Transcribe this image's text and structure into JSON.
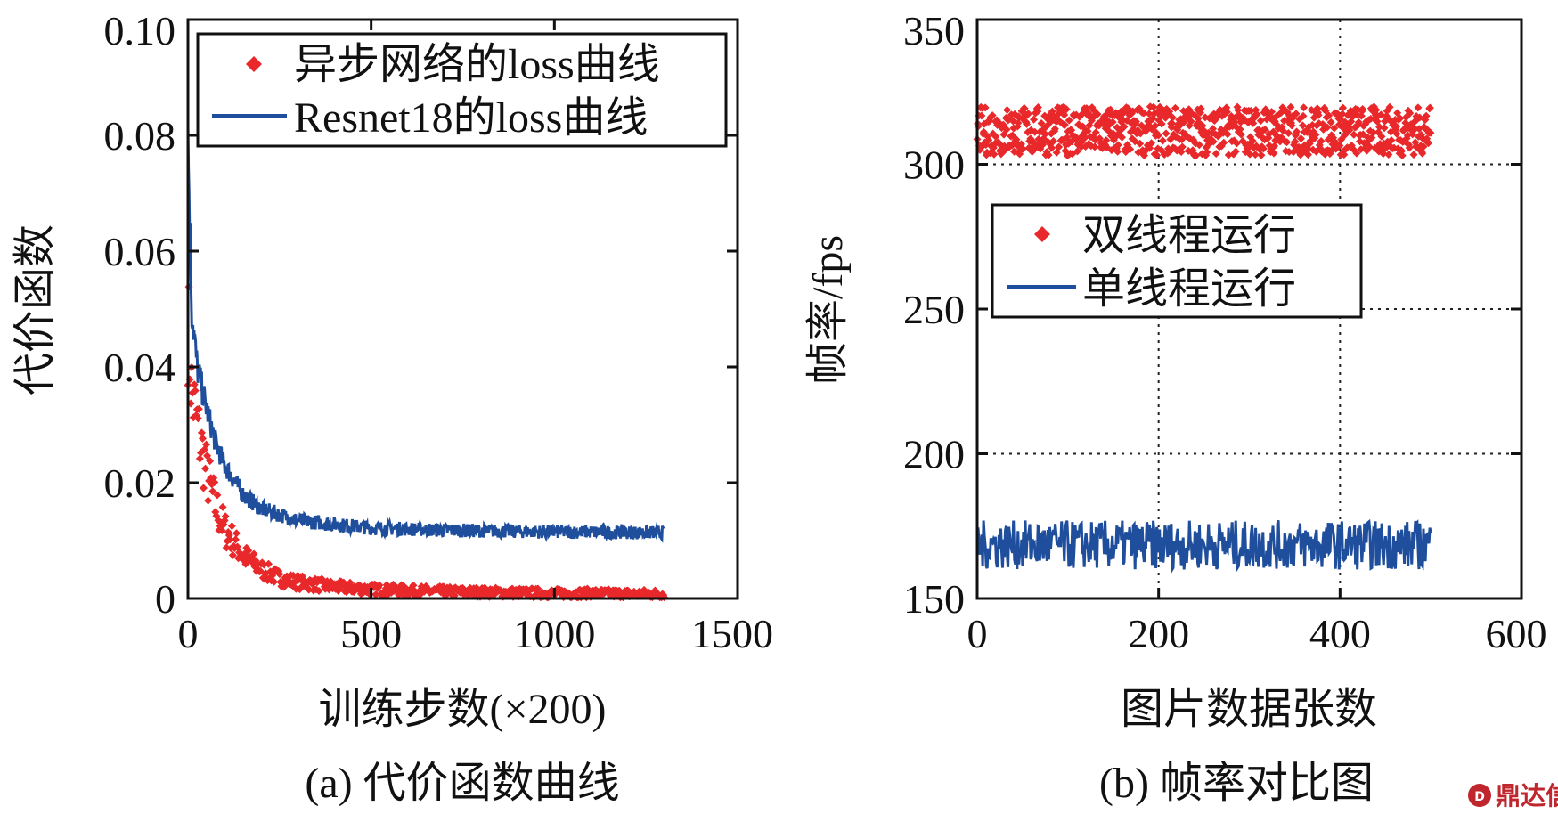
{
  "chart_data": [
    {
      "type": "scatter",
      "subtitle": "(a) 代价函数曲线",
      "xlabel": "训练步数(×200)",
      "ylabel": "代价函数",
      "xlim": [
        0,
        1500
      ],
      "ylim": [
        0,
        0.1
      ],
      "xticks": [
        "0",
        "500",
        "1000",
        "1500"
      ],
      "yticks": [
        "0",
        "0.02",
        "0.04",
        "0.06",
        "0.08",
        "0.10"
      ],
      "grid": false,
      "legend_position": "top-right",
      "series": [
        {
          "name": "异步网络的loss曲线",
          "style": "markers",
          "color": "#e8282a",
          "x": [
            0,
            10,
            25,
            50,
            75,
            100,
            150,
            200,
            250,
            300,
            400,
            500,
            600,
            700,
            800,
            900,
            1000,
            1100,
            1200,
            1300
          ],
          "y": [
            0.048,
            0.036,
            0.03,
            0.022,
            0.016,
            0.012,
            0.0075,
            0.005,
            0.0035,
            0.0028,
            0.002,
            0.0016,
            0.0014,
            0.0012,
            0.0011,
            0.001,
            0.0009,
            0.0009,
            0.0008,
            0.0008
          ]
        },
        {
          "name": "Resnet18的loss曲线",
          "style": "line",
          "color": "#1f4e9c",
          "x": [
            0,
            10,
            25,
            50,
            75,
            100,
            150,
            200,
            250,
            300,
            400,
            500,
            600,
            700,
            800,
            900,
            1000,
            1100,
            1200,
            1300
          ],
          "y": [
            0.08,
            0.05,
            0.04,
            0.033,
            0.027,
            0.023,
            0.018,
            0.0155,
            0.0145,
            0.0135,
            0.0128,
            0.0122,
            0.012,
            0.0118,
            0.0117,
            0.0116,
            0.0115,
            0.0115,
            0.0114,
            0.0114
          ]
        }
      ]
    },
    {
      "type": "scatter",
      "subtitle": "(b) 帧率对比图",
      "xlabel": "图片数据张数",
      "ylabel": "帧率/fps",
      "xlim": [
        0,
        600
      ],
      "ylim": [
        150,
        350
      ],
      "xticks": [
        "0",
        "200",
        "400",
        "600"
      ],
      "yticks": [
        "150",
        "200",
        "250",
        "300",
        "350"
      ],
      "grid": true,
      "legend_position": "center-left",
      "series": [
        {
          "name": "双线程运行",
          "style": "markers",
          "color": "#e8282a",
          "x": [
            0,
            500
          ],
          "y_range": [
            303,
            320
          ],
          "y_mean": 311
        },
        {
          "name": "单线程运行",
          "style": "line",
          "color": "#1f4e9c",
          "x": [
            0,
            500
          ],
          "y_range": [
            160,
            177
          ],
          "y_mean": 169
        }
      ]
    }
  ],
  "watermark": {
    "icon": "brand-logo-icon",
    "text": "鼎达信",
    "color": "#c0262d"
  }
}
